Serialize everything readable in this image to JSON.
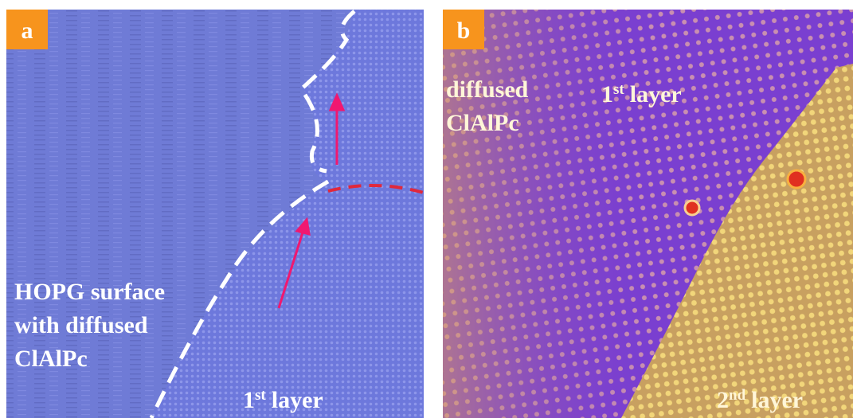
{
  "panels": [
    {
      "label": "a",
      "region_text": [
        "HOPG surface",
        "with diffused",
        "ClAlPc"
      ],
      "layer_text": {
        "number": "1",
        "suffix": "st",
        "word": "layer"
      }
    },
    {
      "label": "b",
      "region_text": [
        "diffused",
        "ClAlPc"
      ],
      "layer_text": {
        "number": "1",
        "suffix": "st",
        "word": "layer"
      },
      "layer2_text": {
        "number": "2",
        "suffix": "nd",
        "word": "layer"
      }
    }
  ]
}
